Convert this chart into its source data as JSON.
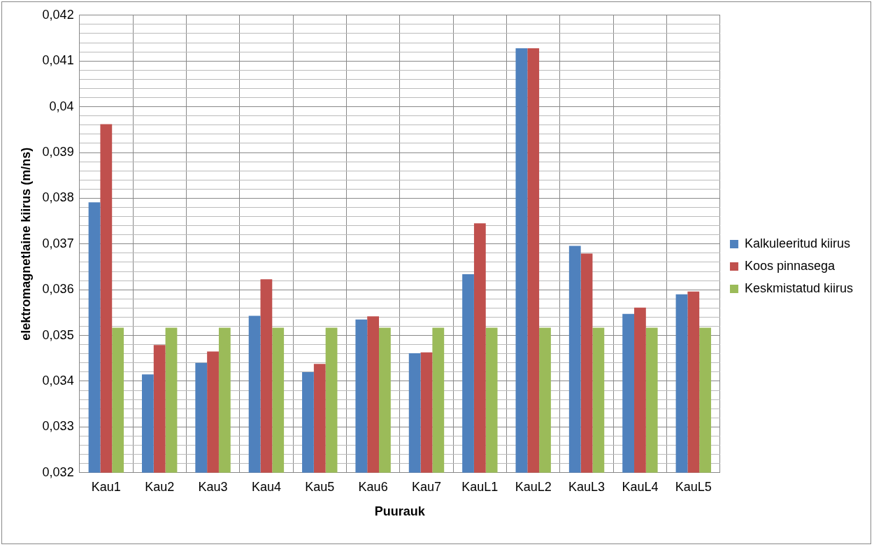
{
  "chart_data": {
    "type": "bar",
    "xlabel": "Puurauk",
    "ylabel": "elektromagnetlaine kiirus (m/ns)",
    "categories": [
      "Kau1",
      "Kau2",
      "Kau3",
      "Kau4",
      "Kau5",
      "Kau6",
      "Kau7",
      "KauL1",
      "KauL2",
      "KauL3",
      "KauL4",
      "KauL5"
    ],
    "series": [
      {
        "name": "Kalkuleeritud kiirus",
        "color": "#4f81bd",
        "values": [
          0.03791,
          0.03415,
          0.0344,
          0.03543,
          0.0342,
          0.03535,
          0.03461,
          0.03634,
          0.04128,
          0.03696,
          0.03547,
          0.0359
        ]
      },
      {
        "name": "Koos pinnasega",
        "color": "#c0504d",
        "values": [
          0.03962,
          0.03479,
          0.03465,
          0.03623,
          0.03438,
          0.03542,
          0.03463,
          0.03745,
          0.04128,
          0.03679,
          0.03561,
          0.03596
        ]
      },
      {
        "name": "Keskmistatud kiirus",
        "color": "#9bbb59",
        "values": [
          0.03517,
          0.03517,
          0.03517,
          0.03517,
          0.03517,
          0.03517,
          0.03517,
          0.03517,
          0.03517,
          0.03517,
          0.03517,
          0.03517
        ]
      }
    ],
    "ylim": [
      0.032,
      0.042
    ],
    "yticks": [
      "0,032",
      {
        "value": 0.0322,
        "label": null
      },
      {
        "value": 0.0324,
        "label": null
      },
      {
        "value": 0.0326,
        "label": null
      },
      {
        "value": 0.0328,
        "label": null
      },
      {
        "value": 0.033,
        "label": "0,033"
      },
      {
        "value": 0.0332,
        "label": null
      },
      {
        "value": 0.0334,
        "label": null
      },
      {
        "value": 0.0336,
        "label": null
      },
      {
        "value": 0.0338,
        "label": null
      },
      {
        "value": 0.034,
        "label": "0,034"
      },
      {
        "value": 0.0342,
        "label": null
      },
      {
        "value": 0.0344,
        "label": null
      },
      {
        "value": 0.0346,
        "label": null
      },
      {
        "value": 0.0348,
        "label": null
      },
      {
        "value": 0.035,
        "label": "0,035"
      },
      {
        "value": 0.0352,
        "label": null
      },
      {
        "value": 0.0354,
        "label": null
      },
      {
        "value": 0.0356,
        "label": null
      },
      {
        "value": 0.0358,
        "label": null
      },
      {
        "value": 0.036,
        "label": "0,036"
      },
      {
        "value": 0.0362,
        "label": null
      },
      {
        "value": 0.0364,
        "label": null
      },
      {
        "value": 0.0366,
        "label": null
      },
      {
        "value": 0.0368,
        "label": null
      },
      {
        "value": 0.037,
        "label": "0,037"
      },
      {
        "value": 0.0372,
        "label": null
      },
      {
        "value": 0.0374,
        "label": null
      },
      {
        "value": 0.0376,
        "label": null
      },
      {
        "value": 0.0378,
        "label": null
      },
      {
        "value": 0.038,
        "label": "0,038"
      },
      {
        "value": 0.0382,
        "label": null
      },
      {
        "value": 0.0384,
        "label": null
      },
      {
        "value": 0.0386,
        "label": null
      },
      {
        "value": 0.0388,
        "label": null
      },
      {
        "value": 0.039,
        "label": "0,039"
      },
      {
        "value": 0.0392,
        "label": null
      },
      {
        "value": 0.0394,
        "label": null
      },
      {
        "value": 0.0396,
        "label": null
      },
      {
        "value": 0.0398,
        "label": null
      },
      {
        "value": 0.04,
        "label": "0,04"
      },
      {
        "value": 0.0402,
        "label": null
      },
      {
        "value": 0.0404,
        "label": null
      },
      {
        "value": 0.0406,
        "label": null
      },
      {
        "value": 0.0408,
        "label": null
      },
      {
        "value": 0.041,
        "label": "0,041"
      },
      {
        "value": 0.0412,
        "label": null
      },
      {
        "value": 0.0414,
        "label": null
      },
      {
        "value": 0.0416,
        "label": null
      },
      {
        "value": 0.0418,
        "label": null
      },
      {
        "value": 0.042,
        "label": "0,042"
      }
    ],
    "grid": true,
    "legend": "right"
  }
}
